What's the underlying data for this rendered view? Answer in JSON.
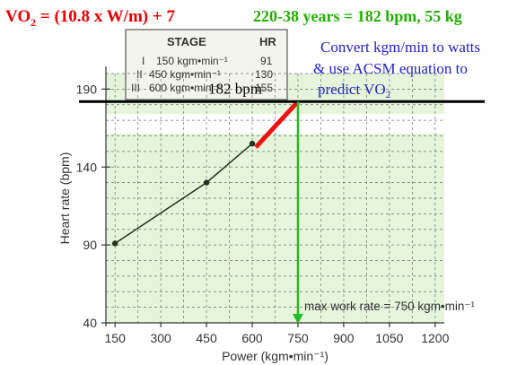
{
  "slide": {
    "formula": "VO",
    "formula_sub": "2",
    "formula_rest": " = (10.8 x W/m) + 7",
    "age_text": "220-38 years = 182 bpm, 55 kg",
    "instruction_lines": [
      "Convert kgm/min to watts",
      "& use ACSM equation to"
    ],
    "instruction_last": "predict VO",
    "instruction_sub": "2"
  },
  "stage_table": {
    "headers": [
      "STAGE",
      "HR"
    ],
    "rows": [
      {
        "stage": "I",
        "load": "150 kgm•min⁻¹",
        "hr": "91"
      },
      {
        "stage": "II",
        "load": "450 kgm•min⁻¹",
        "hr": "130"
      },
      {
        "stage": "III",
        "load": "600 kgm•min⁻¹",
        "hr": "155"
      }
    ]
  },
  "colors": {
    "red_text": "#e60000",
    "green_text": "#22b000",
    "blue_text": "#2222cc",
    "plot_bg": "#e4f5dc",
    "extrapolation": "#ee1111",
    "drop_line": "#22bb22",
    "max_line": "#000000"
  },
  "chart_data": {
    "type": "line",
    "xlabel": "Power (kgm•min⁻¹)",
    "ylabel": "Heart rate (bpm)",
    "xlim": [
      120,
      1230
    ],
    "ylim": [
      40,
      200
    ],
    "x_ticks": [
      150,
      300,
      450,
      600,
      750,
      900,
      1050,
      1200
    ],
    "y_ticks": [
      40,
      90,
      140,
      190
    ],
    "grid": true,
    "series": [
      {
        "x": [
          150,
          450,
          600
        ],
        "y": [
          91,
          130,
          155
        ]
      }
    ],
    "extrapolation": {
      "x": [
        600,
        750
      ],
      "y": [
        155,
        182
      ]
    },
    "max_hr_label": "182 bpm",
    "max_hr_value": 182,
    "max_work_rate_value": 750,
    "max_work_rate_label": "max work rate = 750 kgm•min⁻¹"
  }
}
